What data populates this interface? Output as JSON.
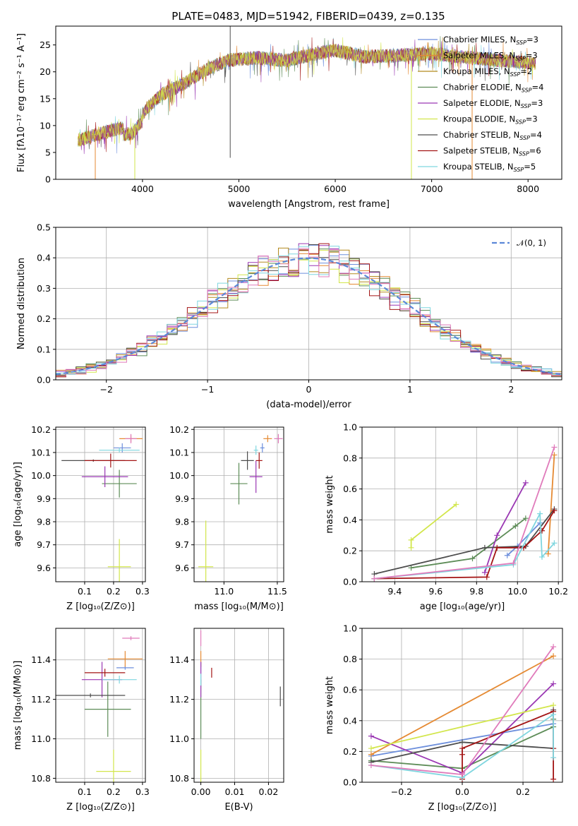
{
  "colors": {
    "series": [
      "#6d8fdc",
      "#e58a33",
      "#b38a1f",
      "#5d8c57",
      "#9a37b3",
      "#d2e64b",
      "#4d4d4d",
      "#a31414",
      "#7fd6df"
    ],
    "extra_pink": "#e07bbb",
    "normal_curve": "#5b88d8",
    "grid": "#b0b0b0"
  },
  "page": {
    "title": "PLATE=0483, MJD=51942, FIBERID=0439, z=0.135"
  },
  "chart_data": [
    {
      "id": "spectrum",
      "type": "line",
      "xlabel": "wavelength [Angstrom, rest frame]",
      "ylabel": "Flux [fλ10⁻¹⁷ erg cm⁻² s⁻¹ A⁻¹]",
      "xlim": [
        3100,
        8350
      ],
      "ylim": [
        0,
        28.5
      ],
      "xticks": [
        4000,
        5000,
        6000,
        7000,
        8000
      ],
      "yticks": [
        0,
        5,
        10,
        15,
        20,
        25
      ],
      "grid": false,
      "legend_position": "top-right",
      "continuum": [
        [
          3330,
          7.2
        ],
        [
          3500,
          8.2
        ],
        [
          3700,
          9.2
        ],
        [
          3900,
          9.8
        ],
        [
          4050,
          13.3
        ],
        [
          4200,
          15.8
        ],
        [
          4400,
          17.5
        ],
        [
          4700,
          20.8
        ],
        [
          4900,
          22.2
        ],
        [
          5200,
          22.6
        ],
        [
          5500,
          22.1
        ],
        [
          5800,
          23.4
        ],
        [
          6000,
          24.0
        ],
        [
          6300,
          22.8
        ],
        [
          6600,
          23.0
        ],
        [
          7000,
          23.4
        ],
        [
          7400,
          22.6
        ],
        [
          7800,
          22.0
        ],
        [
          8080,
          21.6
        ]
      ],
      "legend": [
        {
          "label": "Chabrier MILES, N",
          "sub": "SSP",
          "suffix": "=3"
        },
        {
          "label": "Salpeter MILES, N",
          "sub": "SSP",
          "suffix": "=3"
        },
        {
          "label": "Kroupa MILES, N",
          "sub": "SSP",
          "suffix": "=2"
        },
        {
          "label": "Chabrier ELODIE, N",
          "sub": "SSP",
          "suffix": "=4"
        },
        {
          "label": "Salpeter ELODIE, N",
          "sub": "SSP",
          "suffix": "=3"
        },
        {
          "label": "Kroupa ELODIE, N",
          "sub": "SSP",
          "suffix": "=3"
        },
        {
          "label": "Chabrier STELIB, N",
          "sub": "SSP",
          "suffix": "=4"
        },
        {
          "label": "Salpeter STELIB, N",
          "sub": "SSP",
          "suffix": "=6"
        },
        {
          "label": "Kroupa STELIB, N",
          "sub": "SSP",
          "suffix": "=5"
        }
      ]
    },
    {
      "id": "residuals",
      "type": "line",
      "xlabel": "(data-model)/error",
      "ylabel": "Normed distribution",
      "xlim": [
        -2.5,
        2.5
      ],
      "ylim": [
        0,
        0.5
      ],
      "xticks": [
        -2,
        -1,
        0,
        1,
        2
      ],
      "yticks": [
        0.0,
        0.1,
        0.2,
        0.3,
        0.4,
        0.5
      ],
      "grid": true,
      "legend_position": "top-right",
      "legend": [
        {
          "label": "𝒩(0, 1)"
        }
      ],
      "bin_width": 0.1
    },
    {
      "id": "age-vs-Z",
      "type": "scatter",
      "xlabel": "Z [log₁₀(Z/Z⊙)]",
      "ylabel": "age  [log₁₀(age/yr)]",
      "xlim": [
        0.0,
        0.31
      ],
      "ylim": [
        9.54,
        10.21
      ],
      "xticks": [
        0.1,
        0.2,
        0.3
      ],
      "yticks": [
        9.6,
        9.7,
        9.8,
        9.9,
        10.0,
        10.1,
        10.2
      ],
      "grid": true,
      "points": [
        {
          "s": 0,
          "x": 0.23,
          "xe": 0.03,
          "y": 10.12,
          "ye": 0.02
        },
        {
          "s": 1,
          "x": 0.26,
          "xe": 0.04,
          "y": 10.16,
          "ye": 0.015
        },
        {
          "s": 3,
          "x": 0.22,
          "xe": 0.06,
          "y": 9.965,
          "ye": 0.06
        },
        {
          "s": 4,
          "x": 0.17,
          "xe": 0.08,
          "y": 9.995,
          "ye": 0.045
        },
        {
          "s": 5,
          "x": 0.22,
          "xe": 0.04,
          "y": 9.605,
          "ye": 0.12
        },
        {
          "s": 6,
          "x": 0.13,
          "xe": 0.11,
          "y": 10.065,
          "ye": 0.005
        },
        {
          "s": 7,
          "x": 0.19,
          "xe": 0.09,
          "y": 10.065,
          "ye": 0.03
        },
        {
          "s": 8,
          "x": 0.22,
          "xe": 0.07,
          "y": 10.11,
          "ye": 0.01
        },
        {
          "s": -1,
          "x": 0.26,
          "xe": 0.02,
          "y": 10.16,
          "ye": 0.02
        }
      ]
    },
    {
      "id": "age-vs-mass",
      "type": "scatter",
      "xlabel": "mass [log₁₀(M/M⊙)]",
      "ylabel": "",
      "xlim": [
        10.72,
        11.56
      ],
      "ylim": [
        9.54,
        10.21
      ],
      "xticks": [
        11.0,
        11.5
      ],
      "yticks": [
        9.6,
        9.7,
        9.8,
        9.9,
        10.0,
        10.1,
        10.2
      ],
      "grid": true,
      "points": [
        {
          "s": 0,
          "x": 11.36,
          "xe": 0.02,
          "y": 10.12,
          "ye": 0.02
        },
        {
          "s": 1,
          "x": 11.41,
          "xe": 0.04,
          "y": 10.16,
          "ye": 0.015
        },
        {
          "s": 3,
          "x": 11.14,
          "xe": 0.08,
          "y": 9.965,
          "ye": 0.09
        },
        {
          "s": 4,
          "x": 11.3,
          "xe": 0.06,
          "y": 9.995,
          "ye": 0.07
        },
        {
          "s": 5,
          "x": 10.83,
          "xe": 0.07,
          "y": 9.605,
          "ye": 0.2
        },
        {
          "s": 6,
          "x": 11.22,
          "xe": 0.06,
          "y": 10.065,
          "ye": 0.04
        },
        {
          "s": 7,
          "x": 11.33,
          "xe": 0.03,
          "y": 10.065,
          "ye": 0.035
        },
        {
          "s": 8,
          "x": 11.3,
          "xe": 0.02,
          "y": 10.11,
          "ye": 0.02
        },
        {
          "s": -1,
          "x": 11.51,
          "xe": 0.04,
          "y": 10.16,
          "ye": 0.02
        }
      ]
    },
    {
      "id": "weight-vs-age",
      "type": "line",
      "xlabel": "age  [log₁₀(age/yr)]",
      "ylabel": "mass weight",
      "xlim": [
        9.24,
        10.22
      ],
      "ylim": [
        0,
        1.0
      ],
      "xticks": [
        9.4,
        9.6,
        9.8,
        10.0,
        10.2
      ],
      "yticks": [
        0.0,
        0.2,
        0.4,
        0.6,
        0.8,
        1.0
      ],
      "grid": true,
      "series": [
        {
          "s": 0,
          "x": [
            9.95,
            10.0,
            10.11
          ],
          "y": [
            0.17,
            0.23,
            0.38
          ]
        },
        {
          "s": 1,
          "x": [
            10.15,
            10.18
          ],
          "y": [
            0.18,
            0.82
          ]
        },
        {
          "s": 3,
          "x": [
            9.48,
            9.78,
            9.99,
            10.04
          ],
          "y": [
            0.09,
            0.15,
            0.36,
            0.41
          ]
        },
        {
          "s": 4,
          "x": [
            9.84,
            9.9,
            10.04
          ],
          "y": [
            0.06,
            0.3,
            0.64
          ]
        },
        {
          "s": 5,
          "x": [
            9.48,
            9.48,
            9.7
          ],
          "y": [
            0.22,
            0.27,
            0.5
          ]
        },
        {
          "s": 6,
          "x": [
            9.3,
            9.84,
            10.04,
            10.18
          ],
          "y": [
            0.05,
            0.22,
            0.23,
            0.47
          ]
        },
        {
          "s": 7,
          "x": [
            9.3,
            9.85,
            9.9,
            10.03,
            10.12,
            10.18
          ],
          "y": [
            0.02,
            0.03,
            0.22,
            0.22,
            0.33,
            0.46
          ]
        },
        {
          "s": 8,
          "x": [
            9.3,
            9.98,
            10.11,
            10.12,
            10.18
          ],
          "y": [
            0.02,
            0.11,
            0.44,
            0.16,
            0.25
          ]
        },
        {
          "s": -1,
          "x": [
            9.3,
            9.98,
            10.18
          ],
          "y": [
            0.02,
            0.12,
            0.87
          ]
        }
      ]
    },
    {
      "id": "mass-vs-Z",
      "type": "scatter",
      "xlabel": "Z [log₁₀(Z/Z⊙)]",
      "ylabel": "mass [log₁₀(M/M⊙)]",
      "xlim": [
        0.0,
        0.31
      ],
      "ylim": [
        10.78,
        11.56
      ],
      "xticks": [
        0.1,
        0.2,
        0.3
      ],
      "yticks": [
        10.8,
        11.0,
        11.2,
        11.4
      ],
      "grid": true,
      "points": [
        {
          "s": 0,
          "x": 0.24,
          "xe": 0.03,
          "y": 11.36,
          "ye": 0.01
        },
        {
          "s": 1,
          "x": 0.24,
          "xe": 0.06,
          "y": 11.405,
          "ye": 0.04
        },
        {
          "s": 3,
          "x": 0.18,
          "xe": 0.08,
          "y": 11.15,
          "ye": 0.14
        },
        {
          "s": 4,
          "x": 0.16,
          "xe": 0.07,
          "y": 11.3,
          "ye": 0.09
        },
        {
          "s": 5,
          "x": 0.2,
          "xe": 0.06,
          "y": 10.835,
          "ye": 0.11
        },
        {
          "s": 6,
          "x": 0.12,
          "xe": 0.12,
          "y": 11.22,
          "ye": 0.01
        },
        {
          "s": 7,
          "x": 0.17,
          "xe": 0.07,
          "y": 11.335,
          "ye": 0.02
        },
        {
          "s": 8,
          "x": 0.22,
          "xe": 0.06,
          "y": 11.3,
          "ye": 0.02
        },
        {
          "s": -1,
          "x": 0.26,
          "xe": 0.03,
          "y": 11.51,
          "ye": 0.01
        }
      ]
    },
    {
      "id": "mass-vs-ebv",
      "type": "scatter",
      "xlabel": "E(B-V)",
      "ylabel": "",
      "xlim": [
        -0.002,
        0.0245
      ],
      "ylim": [
        10.78,
        11.56
      ],
      "xticks": [
        0.0,
        0.01,
        0.02
      ],
      "yticks": [
        10.8,
        11.0,
        11.2,
        11.4
      ],
      "grid": true,
      "points": [
        {
          "s": 0,
          "x": 0.0,
          "xe": 0,
          "y": 11.36,
          "ye": 0.03
        },
        {
          "s": 1,
          "x": 0.0,
          "xe": 0,
          "y": 11.405,
          "ye": 0.04
        },
        {
          "s": 3,
          "x": 0.0,
          "xe": 0,
          "y": 11.15,
          "ye": 0.15
        },
        {
          "s": 4,
          "x": 0.0,
          "xe": 0,
          "y": 11.3,
          "ye": 0.09
        },
        {
          "s": 5,
          "x": 0.0,
          "xe": 0,
          "y": 10.835,
          "ye": 0.11
        },
        {
          "s": 6,
          "x": 0.0235,
          "xe": 0,
          "y": 11.215,
          "ye": 0.05
        },
        {
          "s": 7,
          "x": 0.0032,
          "xe": 0,
          "y": 11.335,
          "ye": 0.025
        },
        {
          "s": 8,
          "x": 0.0,
          "xe": 0,
          "y": 11.3,
          "ye": 0.03
        },
        {
          "s": -1,
          "x": 0.0,
          "xe": 0,
          "y": 11.51,
          "ye": 0.04
        }
      ]
    },
    {
      "id": "weight-vs-Z",
      "type": "line",
      "xlabel": "Z [log₁₀(Z/Z⊙)]",
      "ylabel": "mass weight",
      "xlim": [
        -0.33,
        0.33
      ],
      "ylim": [
        0,
        1.0
      ],
      "xticks": [
        -0.2,
        0.0,
        0.2
      ],
      "yticks": [
        0.0,
        0.2,
        0.4,
        0.6,
        0.8,
        1.0
      ],
      "grid": true,
      "series": [
        {
          "s": 0,
          "x": [
            -0.3,
            0.3
          ],
          "y": [
            0.17,
            0.38
          ]
        },
        {
          "s": 1,
          "x": [
            -0.3,
            0.3
          ],
          "y": [
            0.18,
            0.82
          ]
        },
        {
          "s": 3,
          "x": [
            -0.3,
            0.0,
            0.3,
            0.3
          ],
          "y": [
            0.14,
            0.09,
            0.36,
            0.41
          ]
        },
        {
          "s": 4,
          "x": [
            -0.3,
            0.0,
            0.3
          ],
          "y": [
            0.3,
            0.06,
            0.64
          ]
        },
        {
          "s": 5,
          "x": [
            -0.3,
            0.3
          ],
          "y": [
            0.22,
            0.5
          ]
        },
        {
          "s": 6,
          "x": [
            -0.3,
            0.0,
            0.3,
            0.3
          ],
          "y": [
            0.13,
            0.26,
            0.22,
            0.47
          ]
        },
        {
          "s": 7,
          "x": [
            0.0,
            0.0,
            0.0,
            0.3,
            0.3,
            0.3
          ],
          "y": [
            0.02,
            0.18,
            0.22,
            0.46,
            0.22,
            0.02
          ]
        },
        {
          "s": 8,
          "x": [
            -0.3,
            0.0,
            0.3,
            0.3
          ],
          "y": [
            0.11,
            0.03,
            0.44,
            0.16
          ]
        },
        {
          "s": -1,
          "x": [
            -0.3,
            0.0,
            0.3
          ],
          "y": [
            0.11,
            0.05,
            0.88
          ]
        }
      ]
    }
  ]
}
